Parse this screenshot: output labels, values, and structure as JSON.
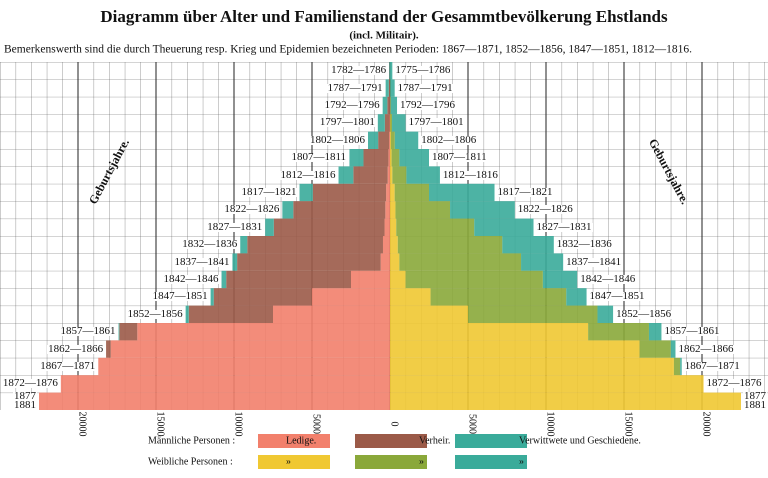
{
  "chart_data": {
    "type": "pyramid",
    "title": "Diagramm über Alter und Familienstand der Gesammtbevölkerung Ehstlands",
    "subtitle": "(incl. Militair).",
    "note": "Bemerkenswerth sind die durch Theuerung resp. Krieg und Epidemien bezeichneten Perioden: 1867—1871, 1852—1856, 1847—1851, 1812—1816.",
    "side_label": "Geburtsjahre.",
    "male_label": "Männliche Personen :",
    "female_label": "Weibliche Personen :",
    "categories_male": [
      "1782—1786",
      "1787—1791",
      "1792—1796",
      "1797—1801",
      "1802—1806",
      "1807—1811",
      "1812—1816",
      "1817—1821",
      "1822—1826",
      "1827—1831",
      "1832—1836",
      "1837—1841",
      "1842—1846",
      "1847—1851",
      "1852—1856",
      "1857—1861",
      "1862—1866",
      "1867—1871",
      "1872—1876",
      "1877\n1881"
    ],
    "categories_female": [
      "1775—1786",
      "1787—1791",
      "1792—1796",
      "1797—1801",
      "1802—1806",
      "1807—1811",
      "1812—1816",
      "1817—1821",
      "1822—1826",
      "1827—1831",
      "1832—1836",
      "1837—1841",
      "1842—1846",
      "1847—1851",
      "1852—1856",
      "1857—1861",
      "1862—1866",
      "1867—1871",
      "1872—1876",
      "1877\n1881"
    ],
    "male_series": [
      {
        "name": "Ledige.",
        "color": "#f2806c",
        "values": [
          0,
          0,
          20,
          30,
          60,
          100,
          150,
          250,
          300,
          350,
          450,
          600,
          2500,
          5000,
          7500,
          16200,
          17900,
          18700,
          21100,
          22500
        ]
      },
      {
        "name": "Verheir.",
        "color": "#9b5a48",
        "values": [
          20,
          80,
          150,
          300,
          700,
          1600,
          2200,
          4700,
          5900,
          7100,
          8700,
          9200,
          8000,
          6300,
          5400,
          1150,
          300,
          0,
          0,
          0
        ]
      },
      {
        "name": "Verwittwete und Geschiedene.",
        "color": "#3aab9a",
        "values": [
          40,
          200,
          300,
          450,
          650,
          900,
          950,
          850,
          700,
          550,
          450,
          300,
          300,
          200,
          200,
          50,
          0,
          0,
          0,
          0
        ]
      }
    ],
    "female_series": [
      {
        "name": "»",
        "color": "#f0c832",
        "values": [
          0,
          0,
          10,
          30,
          60,
          100,
          150,
          300,
          350,
          400,
          500,
          600,
          1000,
          2600,
          5000,
          12700,
          16000,
          18200,
          20100,
          22500
        ]
      },
      {
        "name": "»",
        "color": "#8aa83a",
        "values": [
          0,
          20,
          40,
          100,
          250,
          500,
          900,
          2200,
          3500,
          5000,
          6700,
          7800,
          8800,
          8700,
          8300,
          3900,
          2000,
          400,
          0,
          0
        ]
      },
      {
        "name": "»",
        "color": "#3aab9a",
        "values": [
          150,
          280,
          400,
          870,
          1500,
          1900,
          2150,
          4200,
          4150,
          3800,
          3300,
          2700,
          2200,
          1300,
          1000,
          800,
          300,
          100,
          0,
          0
        ]
      }
    ],
    "xlim": [
      0,
      25000
    ],
    "xticks": [
      0,
      5000,
      10000,
      15000,
      20000
    ],
    "grid": true
  }
}
